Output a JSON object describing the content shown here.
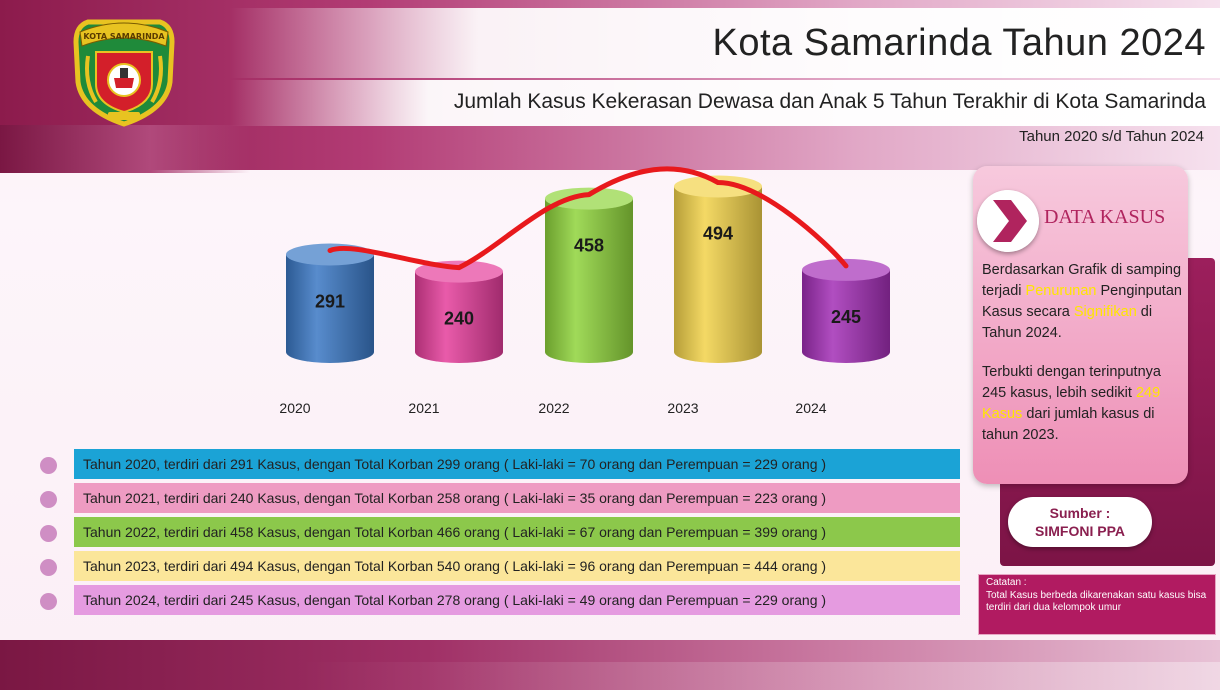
{
  "header": {
    "title": "Kota Samarinda Tahun 2024",
    "subtitle": "Jumlah Kasus Kekerasan Dewasa dan Anak 5 Tahun Terakhir di Kota Samarinda",
    "period": "Tahun 2020 s/d Tahun 2024",
    "logo_text": "KOTA SAMARINDA"
  },
  "chart_data": {
    "type": "bar",
    "bar_shape": "cylinder",
    "categories": [
      "2020",
      "2021",
      "2022",
      "2023",
      "2024"
    ],
    "values": [
      291,
      240,
      458,
      494,
      245
    ],
    "colors": [
      "#3a78c4",
      "#e53e9b",
      "#8fd43c",
      "#f2d24a",
      "#a32fb6"
    ],
    "trend_line_color": "#e8191c",
    "title": "",
    "xlabel": "",
    "ylabel": ""
  },
  "details": [
    {
      "text": "Tahun 2020, terdiri dari 291 Kasus, dengan Total Korban 299 orang ( Laki-laki = 70 orang dan Perempuan = 229 orang )",
      "color": "#1ba3d6"
    },
    {
      "text": "Tahun 2021, terdiri dari 240 Kasus, dengan Total Korban 258 orang ( Laki-laki = 35 orang dan Perempuan = 223 orang )",
      "color": "#ee9bc2"
    },
    {
      "text": "Tahun 2022, terdiri dari 458 Kasus, dengan Total Korban 466 orang ( Laki-laki = 67 orang dan Perempuan = 399 orang )",
      "color": "#8cc84b"
    },
    {
      "text": "Tahun 2023, terdiri dari 494 Kasus, dengan Total Korban 540 orang ( Laki-laki = 96 orang dan Perempuan = 444 orang )",
      "color": "#fbe69a"
    },
    {
      "text": "Tahun 2024, terdiri dari 245 Kasus, dengan Total Korban 278 orang ( Laki-laki = 49 orang dan Perempuan = 229 orang )",
      "color": "#e59be0"
    }
  ],
  "panel": {
    "heading": "DATA KASUS",
    "p1": {
      "a": "Berdasarkan Grafik di samping terjadi ",
      "hl1": "Penurunan",
      "b": " Penginputan Kasus secara ",
      "hl2": "Signifikan",
      "c": " di Tahun 2024."
    },
    "p2": {
      "a": "Terbukti dengan terinputnya 245 kasus, lebih sedikit ",
      "hl": "249 Kasus",
      "b": " dari jumlah kasus di tahun 2023."
    }
  },
  "sumber": {
    "label": "Sumber :",
    "value": "SIMFONI PPA"
  },
  "catatan": {
    "label": "Catatan :",
    "text": "Total Kasus berbeda dikarenakan satu kasus bisa terdiri dari dua kelompok umur"
  }
}
